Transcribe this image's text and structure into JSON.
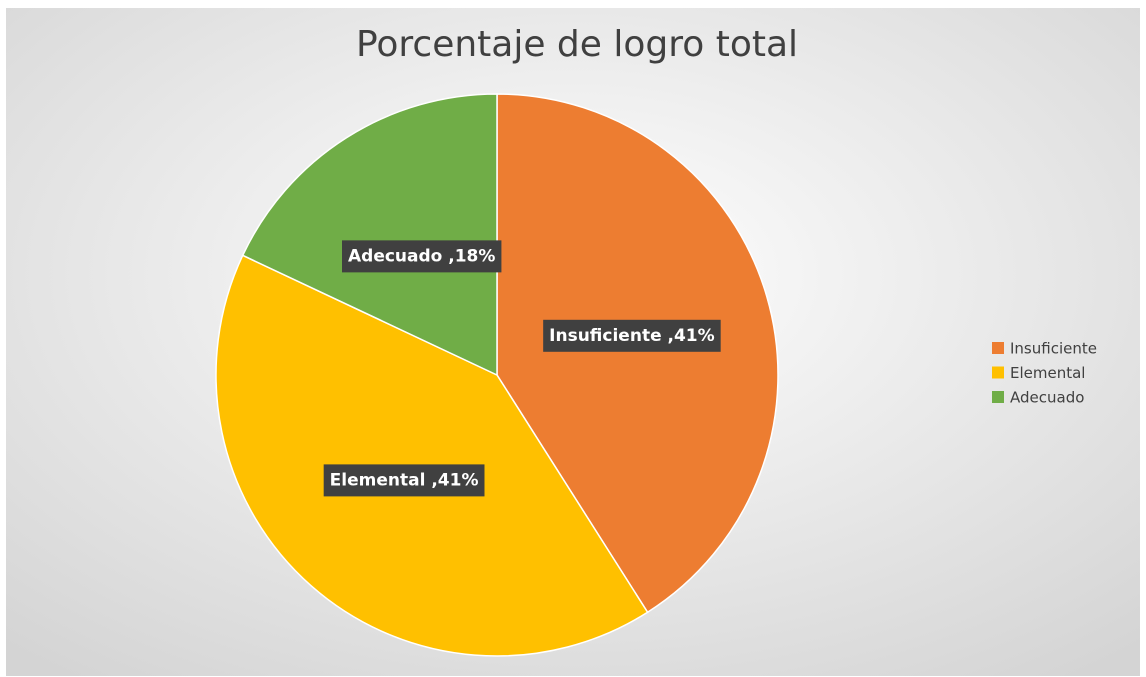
{
  "chart_data": {
    "type": "pie",
    "title": "Porcentaje de logro total",
    "categories": [
      "Insuficiente",
      "Elemental",
      "Adecuado"
    ],
    "values": [
      41,
      41,
      18
    ],
    "value_labels": [
      "Insuficiente ,41%",
      "Elemental ,41%",
      "Adecuado ,18%"
    ],
    "colors": [
      "#ed7d31",
      "#ffc000",
      "#70ad47"
    ],
    "legend": "right"
  }
}
